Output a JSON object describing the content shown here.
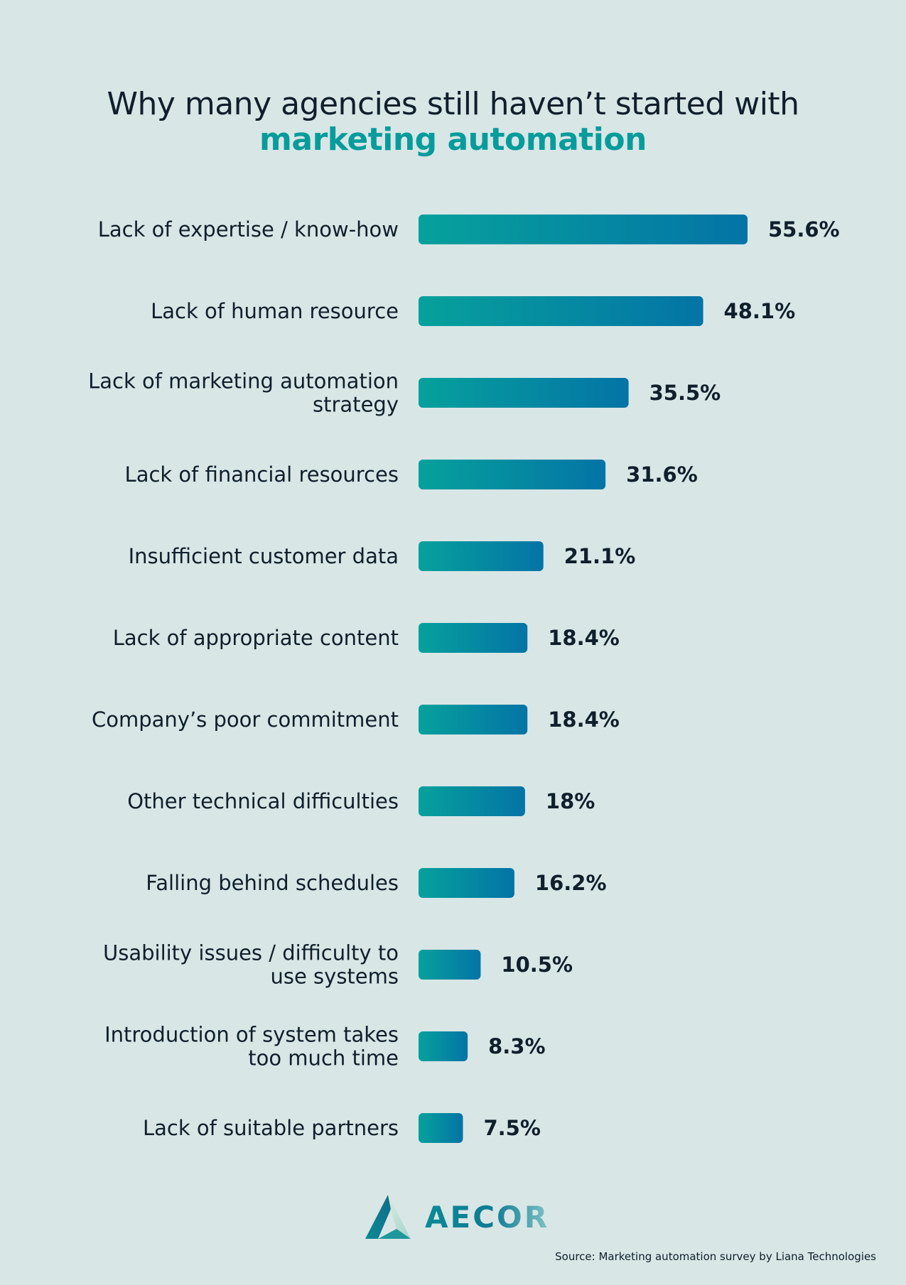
{
  "title": {
    "line1": "Why many agencies still haven’t started with",
    "line2": "marketing automation"
  },
  "chart_data": {
    "type": "bar",
    "orientation": "horizontal",
    "categories": [
      [
        "Lack of expertise / know-how"
      ],
      [
        "Lack of human resource"
      ],
      [
        "Lack of marketing automation",
        "strategy"
      ],
      [
        "Lack of financial resources"
      ],
      [
        "Insufficient customer data"
      ],
      [
        "Lack of appropriate content"
      ],
      [
        "Company’s poor commitment"
      ],
      [
        "Other technical difficulties"
      ],
      [
        "Falling behind schedules"
      ],
      [
        "Usability issues / difficulty to",
        "use systems"
      ],
      [
        "Introduction of system takes",
        "too much time"
      ],
      [
        "Lack of suitable partners"
      ]
    ],
    "values": [
      55.6,
      48.1,
      35.5,
      31.6,
      21.1,
      18.4,
      18.4,
      18,
      16.2,
      10.5,
      8.3,
      7.5
    ],
    "value_labels": [
      "55.6%",
      "48.1%",
      "35.5%",
      "31.6%",
      "21.1%",
      "18.4%",
      "18.4%",
      "18%",
      "16.2%",
      "10.5%",
      "8.3%",
      "7.5%"
    ],
    "unit": "%",
    "grid": false,
    "legend": "none",
    "bar_gradient": [
      "#06a19c",
      "#0474a6"
    ]
  },
  "logo": {
    "text": "AECOR",
    "icon": "aecor-triangle-logo-icon"
  },
  "source": "Source: Marketing automation survey by Liana Technologies",
  "colors": {
    "background": "#d8e6e6",
    "text": "#0f1f2b",
    "accent": "#079c9c"
  }
}
